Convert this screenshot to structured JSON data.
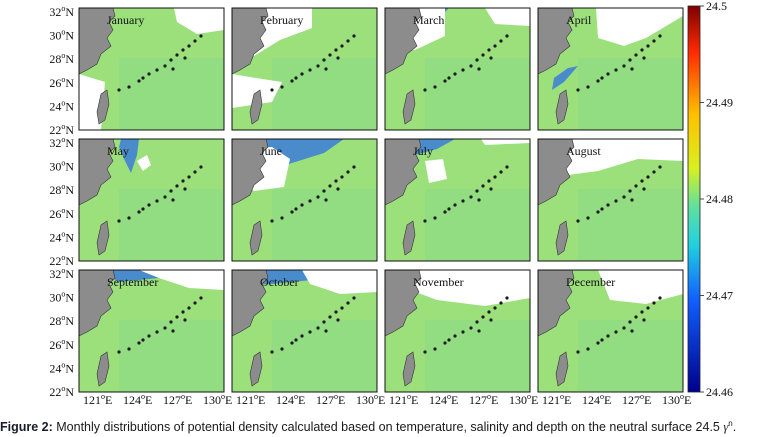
{
  "figure": {
    "panels": [
      {
        "month": "January"
      },
      {
        "month": "February"
      },
      {
        "month": "March"
      },
      {
        "month": "April"
      },
      {
        "month": "May"
      },
      {
        "month": "June"
      },
      {
        "month": "July"
      },
      {
        "month": "August"
      },
      {
        "month": "September"
      },
      {
        "month": "October"
      },
      {
        "month": "November"
      },
      {
        "month": "December"
      }
    ],
    "lat_ticks": [
      "32",
      "30",
      "28",
      "26",
      "24",
      "22"
    ],
    "lat_suffix": "N",
    "lon_ticks": [
      "121",
      "124",
      "127",
      "130"
    ],
    "lon_suffix": "E",
    "deg": "o",
    "colorbar_ticks": [
      "24.5",
      "24.49",
      "24.48",
      "24.47",
      "24.46"
    ],
    "colors": {
      "land": "#8c8c8c",
      "sea": "#9ce07c",
      "sea_alt": "#8ad985",
      "nodata": "#ffffff",
      "low": "#2f6fe6"
    },
    "caption": {
      "label": "Figure 2:",
      "text": " Monthly distributions of potential density calculated based on temperature, salinity and depth on the neutral surface 24.5 ",
      "symbol": "γ",
      "sup": "n",
      "end": "."
    }
  }
}
